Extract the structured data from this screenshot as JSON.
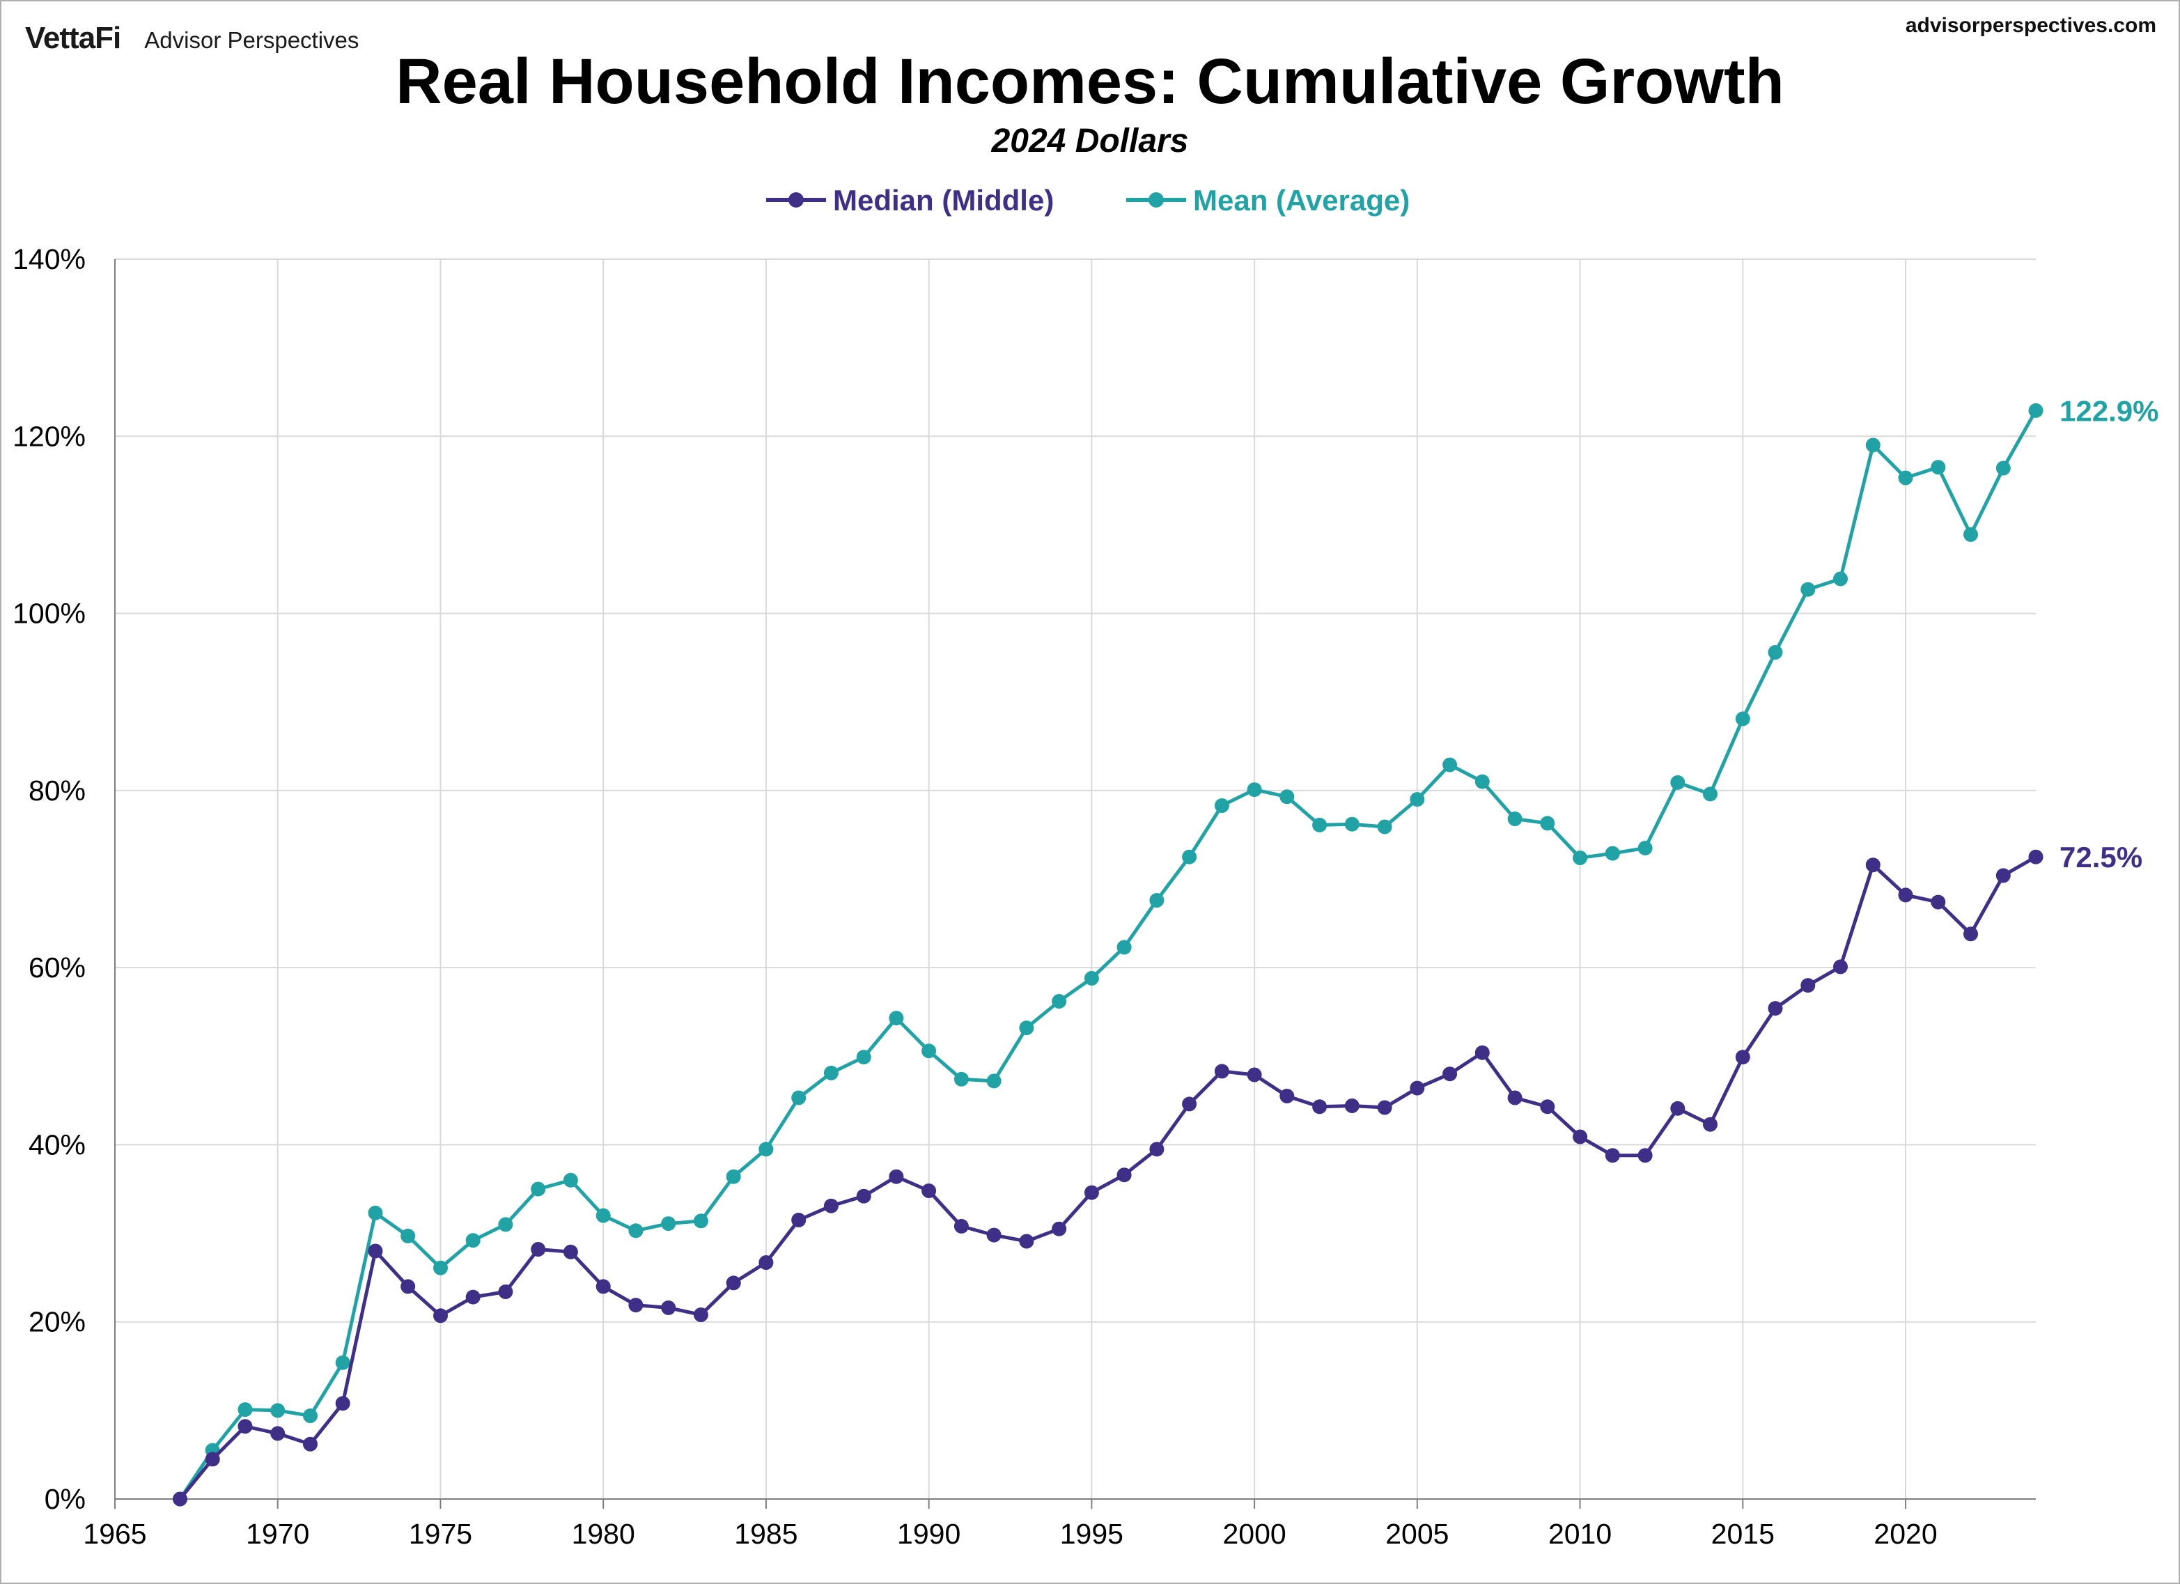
{
  "header": {
    "logo_text": "VettaFi",
    "brand_name": "Advisor Perspectives",
    "site_url": "advisorperspectives.com"
  },
  "chart_data": {
    "type": "line",
    "title": "Real Household Incomes: Cumulative Growth",
    "subtitle": "2024 Dollars",
    "xlabel": "",
    "ylabel": "",
    "xlim": [
      1965,
      2024
    ],
    "ylim": [
      0,
      140
    ],
    "x_ticks": [
      "1965",
      "1970",
      "1975",
      "1980",
      "1985",
      "1990",
      "1995",
      "2000",
      "2005",
      "2010",
      "2015",
      "2020"
    ],
    "y_ticks": [
      "0%",
      "20%",
      "40%",
      "60%",
      "80%",
      "100%",
      "120%",
      "140%"
    ],
    "grid": true,
    "legend_position": "top-center",
    "x": [
      1967,
      1968,
      1969,
      1970,
      1971,
      1972,
      1973,
      1974,
      1975,
      1976,
      1977,
      1978,
      1979,
      1980,
      1981,
      1982,
      1983,
      1984,
      1985,
      1986,
      1987,
      1988,
      1989,
      1990,
      1991,
      1992,
      1993,
      1994,
      1995,
      1996,
      1997,
      1998,
      1999,
      2000,
      2001,
      2002,
      2003,
      2004,
      2005,
      2006,
      2007,
      2008,
      2009,
      2010,
      2011,
      2012,
      2013,
      2014,
      2015,
      2016,
      2017,
      2018,
      2019,
      2020,
      2021,
      2022,
      2023,
      2024
    ],
    "series": [
      {
        "name": "Median (Middle)",
        "color": "#3f2f87",
        "end_label": "72.5%",
        "values": [
          0,
          4.5,
          8.2,
          7.4,
          6.2,
          10.8,
          28.0,
          24.0,
          20.7,
          22.8,
          23.4,
          28.2,
          27.9,
          24.0,
          21.9,
          21.6,
          20.8,
          24.4,
          26.7,
          31.5,
          33.1,
          34.2,
          36.4,
          34.8,
          30.8,
          29.8,
          29.1,
          30.5,
          34.6,
          36.6,
          39.5,
          44.6,
          48.3,
          47.9,
          45.5,
          44.3,
          44.4,
          44.2,
          46.4,
          48.0,
          50.4,
          45.3,
          44.3,
          40.9,
          38.8,
          38.8,
          44.1,
          42.3,
          49.9,
          55.4,
          58.0,
          60.1,
          71.6,
          68.2,
          67.4,
          63.8,
          70.4,
          72.5
        ]
      },
      {
        "name": "Mean (Average)",
        "color": "#21a3a6",
        "end_label": "122.9%",
        "values": [
          0,
          5.5,
          10.1,
          10.0,
          9.4,
          15.4,
          32.3,
          29.7,
          26.1,
          29.2,
          31.0,
          35.0,
          36.0,
          32.0,
          30.3,
          31.1,
          31.4,
          36.4,
          39.5,
          45.3,
          48.1,
          49.9,
          54.3,
          50.6,
          47.4,
          47.2,
          53.2,
          56.2,
          58.8,
          62.3,
          67.6,
          72.5,
          78.3,
          80.1,
          79.3,
          76.1,
          76.2,
          75.9,
          79.0,
          82.9,
          81.0,
          76.8,
          76.3,
          72.4,
          72.9,
          73.5,
          80.9,
          79.6,
          88.1,
          95.6,
          102.7,
          103.9,
          119.0,
          115.3,
          116.5,
          108.9,
          116.4,
          122.9
        ]
      }
    ]
  }
}
